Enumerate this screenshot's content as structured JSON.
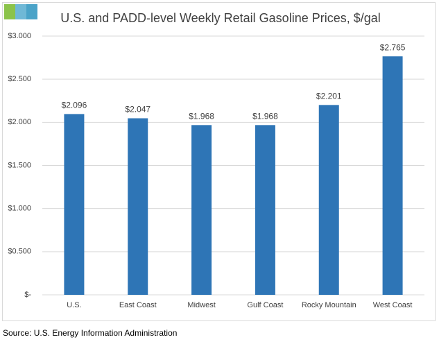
{
  "chart_data": {
    "type": "bar",
    "title": "U.S. and PADD-level Weekly Retail Gasoline Prices, $/gal",
    "categories": [
      "U.S.",
      "East Coast",
      "Midwest",
      "Gulf Coast",
      "Rocky Mountain",
      "West Coast"
    ],
    "values": [
      2.096,
      2.047,
      1.968,
      1.968,
      2.201,
      2.765
    ],
    "value_labels": [
      "$2.096",
      "$2.047",
      "$1.968",
      "$1.968",
      "$2.201",
      "$2.765"
    ],
    "color": "#2e75b6",
    "ylim": [
      0,
      3
    ],
    "yticks": [
      {
        "value": 0,
        "label": "$-"
      },
      {
        "value": 0.5,
        "label": "$0.500"
      },
      {
        "value": 1,
        "label": "$1.000"
      },
      {
        "value": 1.5,
        "label": "$1.500"
      },
      {
        "value": 2,
        "label": "$2.000"
      },
      {
        "value": 2.5,
        "label": "$2.500"
      },
      {
        "value": 3,
        "label": "$3.000"
      }
    ],
    "grid": true,
    "source": "Source: U.S. Energy Information Administration"
  }
}
